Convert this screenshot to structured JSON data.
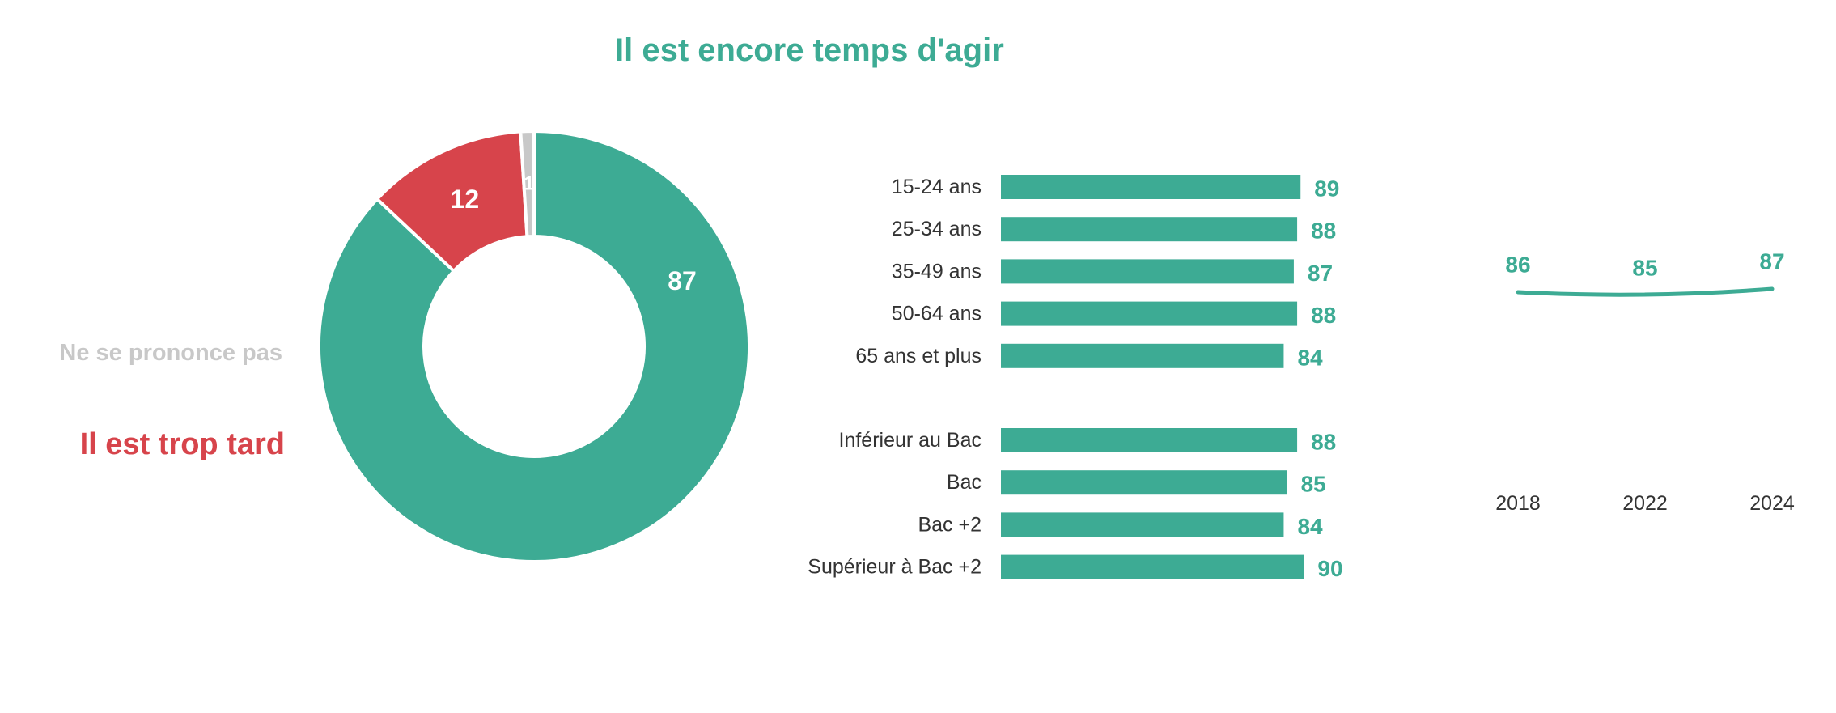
{
  "colors": {
    "green": "#3dab94",
    "red": "#d7444b",
    "grey": "#c8c8c8",
    "text": "#333333"
  },
  "labels": {
    "title": "Il est encore temps d'agir",
    "too_late": "Il est trop tard",
    "no_opinion": "Ne se prononce pas"
  },
  "chart_data": [
    {
      "type": "pie",
      "donut": true,
      "slices": [
        {
          "name": "Il est encore temps d'agir",
          "value": 87,
          "label": "87",
          "color": "#3dab94"
        },
        {
          "name": "Il est trop tard",
          "value": 12,
          "label": "12",
          "color": "#d7444b"
        },
        {
          "name": "Ne se prononce pas",
          "value": 1,
          "label": "1",
          "color": "#c8c8c8"
        }
      ]
    },
    {
      "type": "bar",
      "orientation": "horizontal",
      "xlim": [
        0,
        100
      ],
      "groups": [
        {
          "categories": [
            "15-24 ans",
            "25-34 ans",
            "35-49 ans",
            "50-64 ans",
            "65 ans et plus"
          ],
          "values": [
            89,
            88,
            87,
            88,
            84
          ]
        },
        {
          "categories": [
            "Inférieur au Bac",
            "Bac",
            "Bac +2",
            "Supérieur à Bac +2"
          ],
          "values": [
            88,
            85,
            84,
            90
          ]
        }
      ]
    },
    {
      "type": "line",
      "x": [
        "2018",
        "2022",
        "2024"
      ],
      "values": [
        86,
        85,
        87
      ],
      "labels": [
        "86",
        "85",
        "87"
      ]
    }
  ]
}
